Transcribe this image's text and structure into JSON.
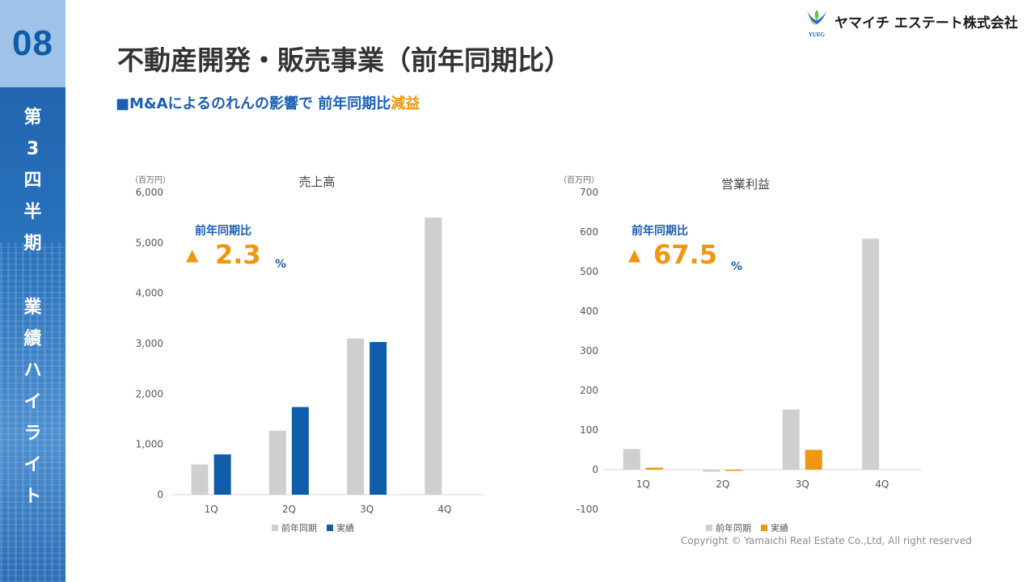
{
  "sidebar": {
    "section_number": "08",
    "vertical_chars": [
      "第",
      "3",
      "四",
      "半",
      "期",
      "",
      "業",
      "績",
      "ハ",
      "イ",
      "ラ",
      "イ",
      "ト"
    ]
  },
  "logo": {
    "brand_text": "ヤマイチ エステート株式会社",
    "mark_text": "YUEG"
  },
  "page_title": "不動産開発・販売事業（前年同期比）",
  "subtitle": {
    "bullet": "■",
    "main": "M&Aによるのれんの影響で 前年同期比",
    "highlight": "減益"
  },
  "colors": {
    "prev_year": "#cfcfcf",
    "sales_actual": "#0f5ca8",
    "profit_actual": "#f0960f",
    "accent_blue": "#1a5fb4",
    "accent_orange": "#f0960f"
  },
  "chart_data": [
    {
      "type": "bar",
      "title": "売上高",
      "unit_label": "（百万円）",
      "categories": [
        "1Q",
        "2Q",
        "3Q",
        "4Q"
      ],
      "series": [
        {
          "name": "前年同期",
          "values": [
            600,
            1270,
            3100,
            5500
          ]
        },
        {
          "name": "実績",
          "values": [
            800,
            1740,
            3030,
            null
          ]
        }
      ],
      "ylim": [
        0,
        6000
      ],
      "yticks": [
        0,
        1000,
        2000,
        3000,
        4000,
        5000,
        6000
      ],
      "ytick_labels": [
        "0",
        "1,000",
        "2,000",
        "3,000",
        "4,000",
        "5,000",
        "6,000"
      ],
      "legend": "bottom",
      "annotation": {
        "label": "前年同期比",
        "marker": "▲",
        "value": "2.3",
        "unit": "%"
      }
    },
    {
      "type": "bar",
      "title": "営業利益",
      "unit_label": "（百万円）",
      "categories": [
        "1Q",
        "2Q",
        "3Q",
        "4Q"
      ],
      "series": [
        {
          "name": "前年同期",
          "values": [
            52,
            -5,
            152,
            583
          ]
        },
        {
          "name": "実績",
          "values": [
            5,
            -3,
            50,
            null
          ]
        }
      ],
      "ylim": [
        -100,
        700
      ],
      "yticks": [
        -100,
        0,
        100,
        200,
        300,
        400,
        500,
        600,
        700
      ],
      "ytick_labels": [
        "-100",
        "0",
        "100",
        "200",
        "300",
        "400",
        "500",
        "600",
        "700"
      ],
      "legend": "bottom",
      "annotation": {
        "label": "前年同期比",
        "marker": "▲",
        "value": "67.5",
        "unit": "%"
      }
    }
  ],
  "copyright": "Copyright © Yamaichi Real Estate Co.,Ltd, All right reserved"
}
